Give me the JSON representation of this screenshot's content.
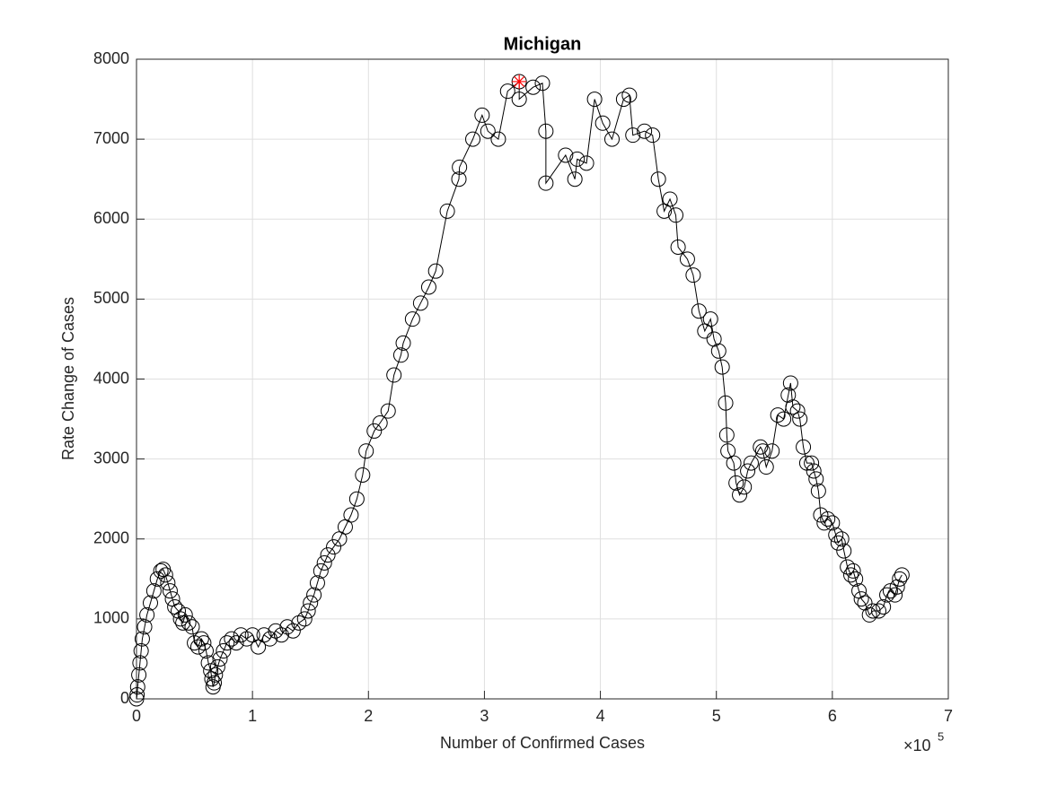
{
  "chart_data": {
    "type": "scatter-line",
    "title": "Michigan",
    "x_label": "Number of Confirmed Cases",
    "y_label": "Rate Change of Cases",
    "x_multiplier": "×10",
    "x_multiplier_exponent": "5",
    "xlim": [
      0,
      700000
    ],
    "ylim": [
      0,
      8000
    ],
    "xticks": [
      {
        "value": 0,
        "label": "0"
      },
      {
        "value": 100000,
        "label": "1"
      },
      {
        "value": 200000,
        "label": "2"
      },
      {
        "value": 300000,
        "label": "3"
      },
      {
        "value": 400000,
        "label": "4"
      },
      {
        "value": 500000,
        "label": "5"
      },
      {
        "value": 600000,
        "label": "6"
      },
      {
        "value": 700000,
        "label": "7"
      }
    ],
    "yticks": [
      0,
      1000,
      2000,
      3000,
      4000,
      5000,
      6000,
      7000,
      8000
    ],
    "grid": true,
    "color": "#000000",
    "x": [
      0,
      500,
      1000,
      2000,
      3000,
      4000,
      5000,
      7000,
      9000,
      12000,
      15000,
      18000,
      21000,
      23000,
      25000,
      27000,
      29000,
      31000,
      33000,
      36000,
      38000,
      40000,
      42000,
      45000,
      48000,
      50000,
      53000,
      56000,
      58000,
      60000,
      62000,
      64000,
      65000,
      66000,
      67000,
      68000,
      70000,
      72000,
      75000,
      78000,
      82000,
      86000,
      90000,
      95000,
      100000,
      105000,
      110000,
      115000,
      120000,
      125000,
      130000,
      135000,
      140000,
      145000,
      148000,
      150000,
      153000,
      156000,
      159000,
      162000,
      165000,
      170000,
      175000,
      180000,
      185000,
      190000,
      195000,
      198000,
      205000,
      210000,
      217000,
      222000,
      228000,
      230000,
      238000,
      245000,
      252000,
      258000,
      268000,
      278000,
      278500,
      290000,
      298000,
      303000,
      312000,
      320000,
      330000,
      330000,
      342000,
      350000,
      353000,
      353000,
      370000,
      378000,
      380000,
      388000,
      395000,
      402000,
      410000,
      420000,
      425000,
      428000,
      438000,
      445000,
      450000,
      455000,
      460000,
      465000,
      467000,
      475000,
      480000,
      485000,
      490000,
      495000,
      498000,
      502000,
      505000,
      508000,
      509000,
      510000,
      515000,
      517000,
      520000,
      524000,
      527000,
      530000,
      538000,
      540000,
      543000,
      548000,
      553000,
      558000,
      562000,
      564000,
      566000,
      570000,
      572000,
      575000,
      578000,
      582000,
      584000,
      586000,
      588000,
      590000,
      593000,
      596000,
      600000,
      603000,
      605000,
      608000,
      610000,
      613000,
      616000,
      618000,
      620000,
      623000,
      625000,
      628000,
      632000,
      635000,
      640000,
      644000,
      647000,
      650000,
      654000,
      656000,
      658000,
      660000
    ],
    "values": [
      0,
      50,
      150,
      300,
      450,
      600,
      750,
      900,
      1050,
      1200,
      1350,
      1500,
      1600,
      1620,
      1550,
      1450,
      1350,
      1250,
      1150,
      1100,
      1000,
      950,
      1050,
      950,
      900,
      700,
      650,
      750,
      700,
      600,
      450,
      350,
      250,
      150,
      200,
      300,
      400,
      500,
      600,
      700,
      750,
      700,
      800,
      750,
      800,
      650,
      800,
      750,
      850,
      800,
      900,
      850,
      950,
      1000,
      1100,
      1200,
      1300,
      1450,
      1600,
      1700,
      1800,
      1900,
      2000,
      2150,
      2300,
      2500,
      2800,
      3100,
      3350,
      3450,
      3600,
      4050,
      4300,
      4450,
      4750,
      4950,
      5150,
      5350,
      6100,
      6500,
      6650,
      7000,
      7300,
      7100,
      7000,
      7600,
      7720,
      7500,
      7650,
      7700,
      7100,
      6450,
      6800,
      6500,
      6750,
      6700,
      7500,
      7200,
      7000,
      7500,
      7550,
      7050,
      7100,
      7050,
      6500,
      6100,
      6250,
      6050,
      5650,
      5500,
      5300,
      4850,
      4600,
      4750,
      4500,
      4350,
      4150,
      3700,
      3300,
      3100,
      2950,
      2700,
      2550,
      2650,
      2850,
      2950,
      3150,
      3100,
      2900,
      3100,
      3550,
      3500,
      3800,
      3950,
      3650,
      3600,
      3500,
      3150,
      2950,
      2950,
      2850,
      2750,
      2600,
      2300,
      2200,
      2250,
      2200,
      2050,
      1950,
      2000,
      1850,
      1650,
      1550,
      1600,
      1500,
      1350,
      1250,
      1200,
      1050,
      1100,
      1100,
      1150,
      1300,
      1350,
      1300,
      1400,
      1500,
      1550
    ],
    "highlight": {
      "x": 330000,
      "y": 7720,
      "color": "#ff0000"
    }
  }
}
